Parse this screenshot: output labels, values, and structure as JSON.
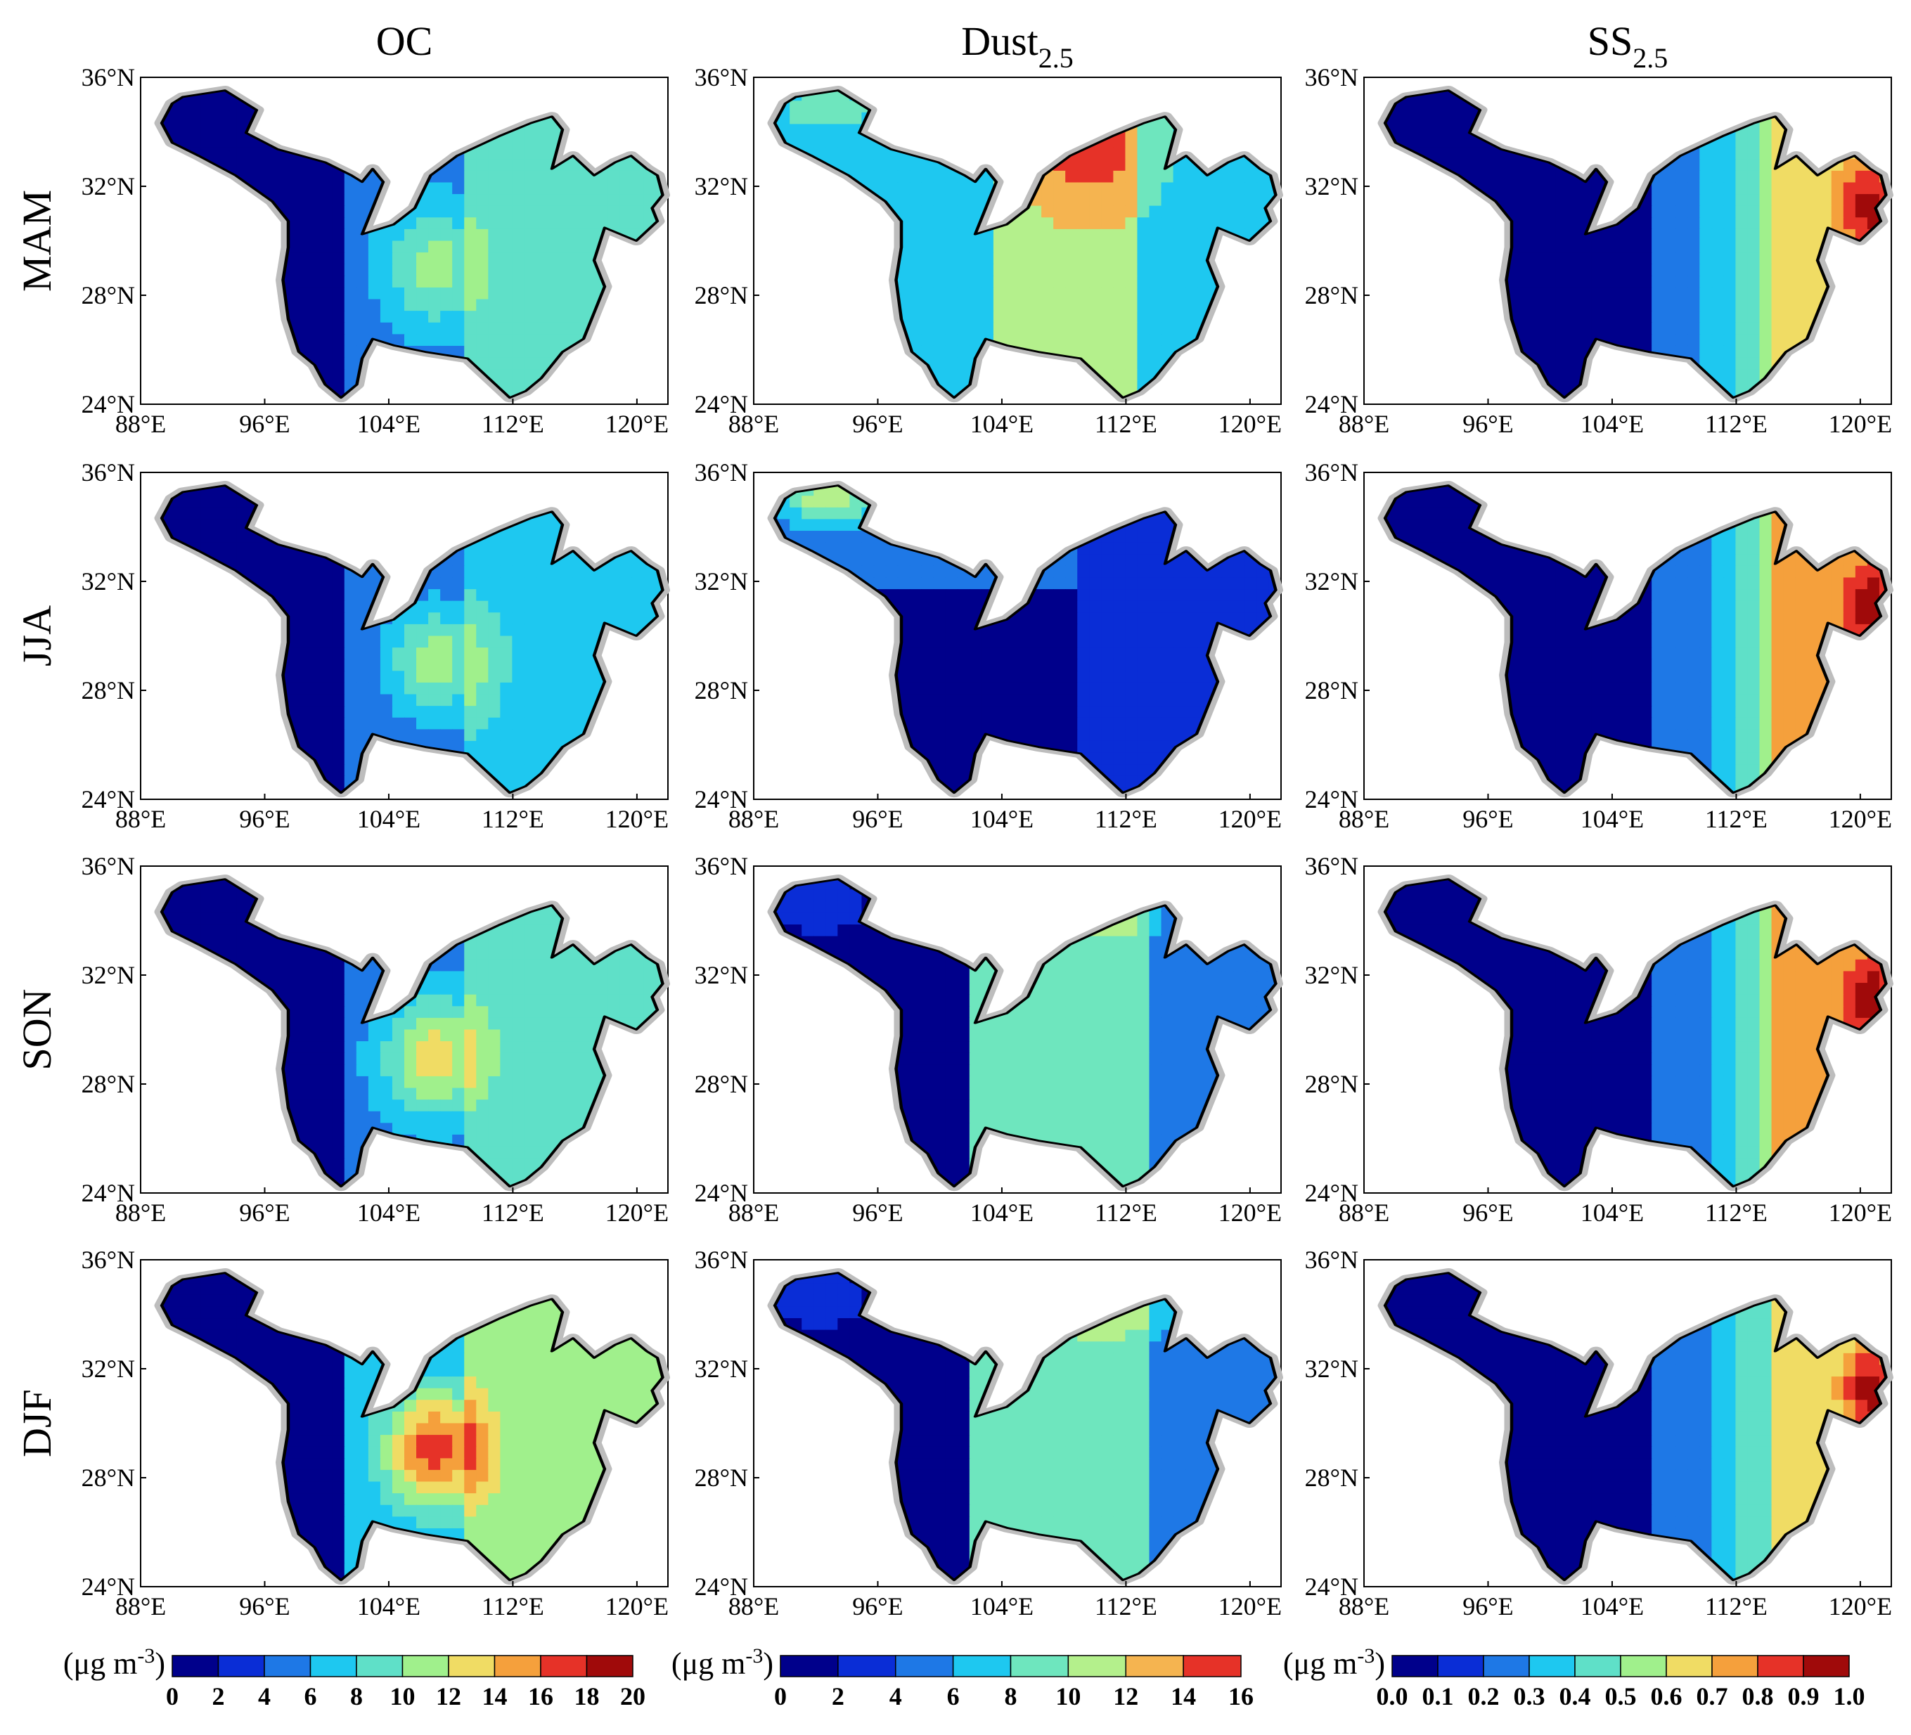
{
  "figure": {
    "columns": [
      {
        "id": "oc",
        "title": "OC",
        "sub": ""
      },
      {
        "id": "dust",
        "title": "Dust",
        "sub": "2.5"
      },
      {
        "id": "ss",
        "title": "SS",
        "sub": "2.5"
      }
    ],
    "rows": [
      "MAM",
      "JJA",
      "SON",
      "DJF"
    ],
    "lat_ticks": [
      "24°N",
      "28°N",
      "32°N",
      "36°N"
    ],
    "lon_ticks": [
      "88°E",
      "96°E",
      "104°E",
      "112°E",
      "120°E"
    ],
    "lat_range": [
      24,
      36
    ],
    "lon_range": [
      88,
      122
    ]
  },
  "colorbars": [
    {
      "unit": "(μg m",
      "unit_sup": "-3",
      "unit_close": ")",
      "ticks": [
        "0",
        "2",
        "4",
        "6",
        "8",
        "10",
        "12",
        "14",
        "16",
        "18",
        "20"
      ]
    },
    {
      "unit": "(μg m",
      "unit_sup": "-3",
      "unit_close": ")",
      "ticks": [
        "0",
        "2",
        "4",
        "6",
        "8",
        "10",
        "12",
        "14",
        "16"
      ]
    },
    {
      "unit": "(μg m",
      "unit_sup": "-3",
      "unit_close": ")",
      "ticks": [
        "0.0",
        "0.1",
        "0.2",
        "0.3",
        "0.4",
        "0.5",
        "0.6",
        "0.7",
        "0.8",
        "0.9",
        "1.0"
      ]
    }
  ],
  "colors": {
    "oc": [
      "#00008b",
      "#0a2dd6",
      "#1e78e6",
      "#1ec8f0",
      "#5fe0c8",
      "#a0f08c",
      "#f0dc64",
      "#f5a03c",
      "#e63228",
      "#a00a0a"
    ],
    "dust": [
      "#00008b",
      "#0a2dd6",
      "#1e78e6",
      "#1ec8f0",
      "#6ee6be",
      "#b4f08c",
      "#f5b450",
      "#e63228"
    ],
    "ss": [
      "#00008b",
      "#0a2dd6",
      "#1e78e6",
      "#1ec8f0",
      "#5fe0c8",
      "#a0f08c",
      "#f0dc64",
      "#f5a03c",
      "#e63228",
      "#a00a0a"
    ]
  },
  "chart_data": [
    {
      "type": "heatmap",
      "variable": "OC",
      "units": "μg m-3",
      "season": "MAM",
      "value_range": [
        0,
        20
      ],
      "field_levels": {
        "west_plateau": 1,
        "sichuan_basin_core": 11,
        "central": 5,
        "east": 8
      }
    },
    {
      "type": "heatmap",
      "variable": "OC",
      "units": "μg m-3",
      "season": "JJA",
      "value_range": [
        0,
        20
      ],
      "field_levels": {
        "west_plateau": 1,
        "sichuan_basin_core": 11,
        "central": 4,
        "east": 7
      }
    },
    {
      "type": "heatmap",
      "variable": "OC",
      "units": "μg m-3",
      "season": "SON",
      "value_range": [
        0,
        20
      ],
      "field_levels": {
        "west_plateau": 1,
        "sichuan_basin_core": 13,
        "central": 5,
        "east": 8
      }
    },
    {
      "type": "heatmap",
      "variable": "OC",
      "units": "μg m-3",
      "season": "DJF",
      "value_range": [
        0,
        20
      ],
      "field_levels": {
        "west_plateau": 1,
        "sichuan_basin_core": 17,
        "central": 6,
        "east": 10
      }
    },
    {
      "type": "heatmap",
      "variable": "Dust2.5",
      "units": "μg m-3",
      "season": "MAM",
      "value_range": [
        0,
        16
      ],
      "field_levels": {
        "north_central_max": 15,
        "central": 11,
        "southwest": 6,
        "east": 7
      }
    },
    {
      "type": "heatmap",
      "variable": "Dust2.5",
      "units": "μg m-3",
      "season": "JJA",
      "value_range": [
        0,
        16
      ],
      "field_levels": {
        "far_northwest": 12,
        "north": 5,
        "basin": 1,
        "east": 3
      }
    },
    {
      "type": "heatmap",
      "variable": "Dust2.5",
      "units": "μg m-3",
      "season": "SON",
      "value_range": [
        0,
        16
      ],
      "field_levels": {
        "north_central": 11,
        "central": 8,
        "west": 1,
        "east": 5
      }
    },
    {
      "type": "heatmap",
      "variable": "Dust2.5",
      "units": "μg m-3",
      "season": "DJF",
      "value_range": [
        0,
        16
      ],
      "field_levels": {
        "north_central": 12,
        "central": 8,
        "west": 1,
        "east": 5
      }
    },
    {
      "type": "heatmap",
      "variable": "SS2.5",
      "units": "μg m-3",
      "season": "MAM",
      "value_range": [
        0,
        1
      ],
      "field_levels": {
        "west": 0.05,
        "central": 0.25,
        "southeast": 0.65,
        "east_coast": 0.95
      }
    },
    {
      "type": "heatmap",
      "variable": "SS2.5",
      "units": "μg m-3",
      "season": "JJA",
      "value_range": [
        0,
        1
      ],
      "field_levels": {
        "west": 0.05,
        "central": 0.2,
        "southeast": 0.7,
        "east_coast": 0.95
      }
    },
    {
      "type": "heatmap",
      "variable": "SS2.5",
      "units": "μg m-3",
      "season": "SON",
      "value_range": [
        0,
        1
      ],
      "field_levels": {
        "west": 0.05,
        "central": 0.2,
        "southeast": 0.7,
        "east_coast": 0.95
      }
    },
    {
      "type": "heatmap",
      "variable": "SS2.5",
      "units": "μg m-3",
      "season": "DJF",
      "value_range": [
        0,
        1
      ],
      "field_levels": {
        "west": 0.05,
        "central": 0.25,
        "southeast": 0.6,
        "east_coast": 0.95
      }
    }
  ]
}
